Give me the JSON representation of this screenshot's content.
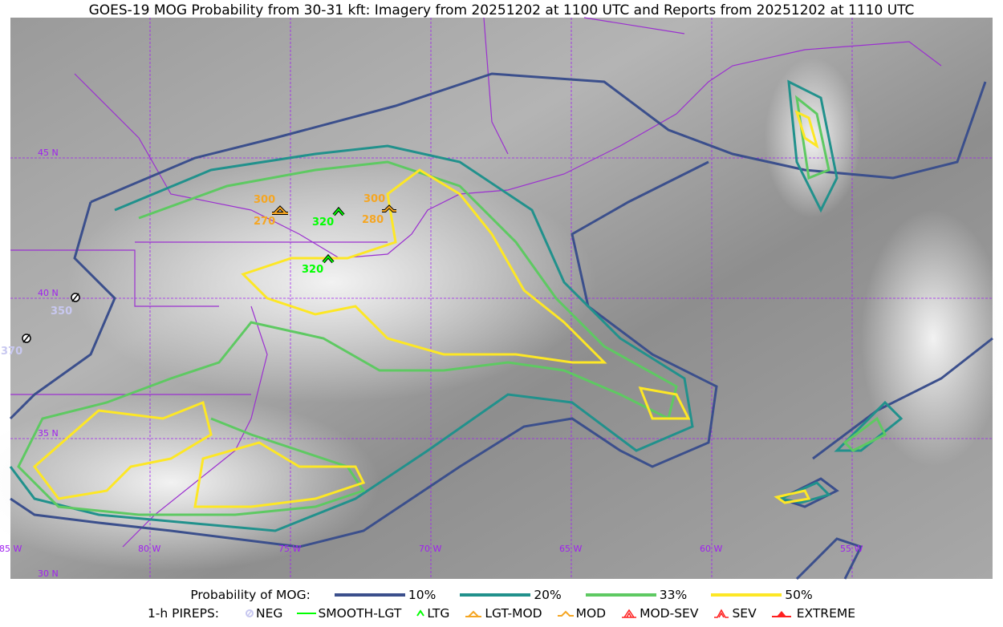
{
  "title": "GOES-19 MOG Probability from 30-31 kft: Imagery from 20251202 at 1100 UTC and Reports from 20251202 at 1110 UTC",
  "map": {
    "lat_labels": [
      "45 N",
      "40 N",
      "35 N",
      "30 N"
    ],
    "lon_labels": [
      "85 W",
      "80 W",
      "75 W",
      "70 W",
      "65 W",
      "60 W",
      "55 W"
    ],
    "gridline_color": "#a020f0",
    "pireps": [
      {
        "type": "LGT-MOD",
        "label": "300",
        "alt_label": "270",
        "color": "#f5a623"
      },
      {
        "type": "LTG",
        "label": "320",
        "color": "#00ff00"
      },
      {
        "type": "MOD",
        "label": "300",
        "alt_label": "280",
        "color": "#f5a623"
      },
      {
        "type": "LTG",
        "label": "320",
        "color": "#00ff00"
      },
      {
        "type": "NEG",
        "label": "350",
        "color": "#c8c8f0"
      },
      {
        "type": "NEG",
        "label": "370",
        "color": "#c8c8f0"
      }
    ]
  },
  "legend": {
    "prob_title": "Probability of MOG:",
    "levels": [
      {
        "label": "10%",
        "color": "#3b4f8c"
      },
      {
        "label": "20%",
        "color": "#21918c"
      },
      {
        "label": "33%",
        "color": "#5ec962"
      },
      {
        "label": "50%",
        "color": "#fde725"
      }
    ],
    "pirep_title": "1-h PIREPS:",
    "pirep_types": [
      {
        "label": "NEG",
        "icon": "neg-icon",
        "color": "#c8c8f0"
      },
      {
        "label": "SMOOTH-LGT",
        "icon": "smooth-line-icon",
        "color": "#00ff00"
      },
      {
        "label": "LTG",
        "icon": "chevron-icon",
        "color": "#00ff00"
      },
      {
        "label": "LGT-MOD",
        "icon": "lgt-mod-icon",
        "color": "#f5a623"
      },
      {
        "label": "MOD",
        "icon": "mod-icon",
        "color": "#f5a623"
      },
      {
        "label": "MOD-SEV",
        "icon": "mod-sev-icon",
        "color": "#ff2020"
      },
      {
        "label": "SEV",
        "icon": "sev-icon",
        "color": "#ff2020"
      },
      {
        "label": "EXTREME",
        "icon": "extreme-icon",
        "color": "#ff2020"
      }
    ]
  }
}
